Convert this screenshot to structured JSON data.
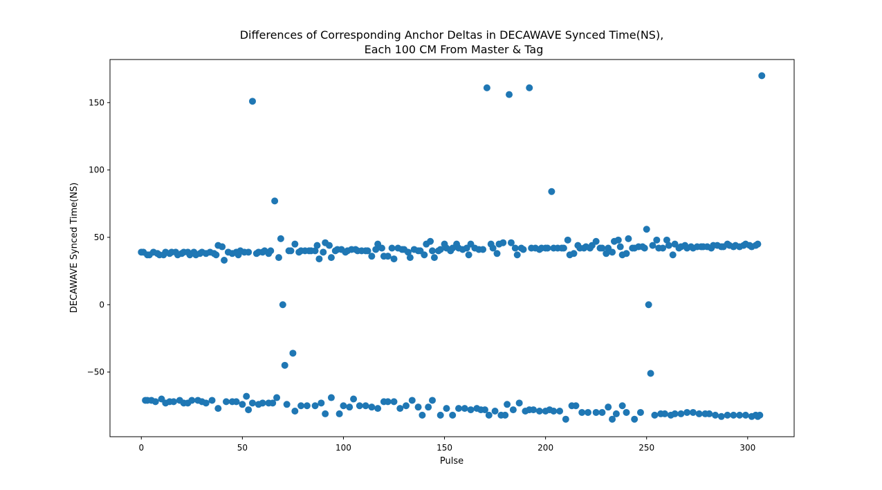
{
  "chart_data": {
    "type": "scatter",
    "title_line1": "Differences of Corresponding Anchor Deltas in DECAWAVE Synced Time(NS),",
    "title_line2": "Each 100 CM From Master & Tag",
    "xlabel": "Pulse",
    "ylabel": "DECAWAVE Synced Time(NS)",
    "xlim": [
      -15.5,
      323
    ],
    "ylim": [
      -98,
      182
    ],
    "xticks": [
      0,
      50,
      100,
      150,
      200,
      250,
      300
    ],
    "yticks": [
      -50,
      0,
      50,
      100,
      150
    ],
    "xtick_labels": [
      "0",
      "50",
      "100",
      "150",
      "200",
      "250",
      "300"
    ],
    "ytick_labels": [
      "−50",
      "0",
      "50",
      "100",
      "150"
    ],
    "grid": false,
    "marker_color": "#1f77b4",
    "series": [
      {
        "points": [
          [
            0,
            39
          ],
          [
            1,
            39
          ],
          [
            3,
            37
          ],
          [
            4,
            37
          ],
          [
            6,
            39
          ],
          [
            8,
            38
          ],
          [
            9,
            37
          ],
          [
            11,
            37
          ],
          [
            12,
            39
          ],
          [
            14,
            38
          ],
          [
            15,
            39
          ],
          [
            17,
            39
          ],
          [
            18,
            37
          ],
          [
            20,
            38
          ],
          [
            21,
            39
          ],
          [
            23,
            39
          ],
          [
            24,
            37
          ],
          [
            26,
            39
          ],
          [
            27,
            37
          ],
          [
            29,
            38
          ],
          [
            30,
            39
          ],
          [
            32,
            38
          ],
          [
            34,
            39
          ],
          [
            36,
            38
          ],
          [
            37,
            37
          ],
          [
            38,
            44
          ],
          [
            40,
            43
          ],
          [
            41,
            33
          ],
          [
            43,
            39
          ],
          [
            45,
            38
          ],
          [
            47,
            39
          ],
          [
            48,
            37
          ],
          [
            49,
            40
          ],
          [
            51,
            39
          ],
          [
            53,
            39
          ],
          [
            55,
            151
          ],
          [
            57,
            38
          ],
          [
            58,
            39
          ],
          [
            60,
            39
          ],
          [
            61,
            40
          ],
          [
            63,
            38
          ],
          [
            64,
            40
          ],
          [
            66,
            77
          ],
          [
            68,
            35
          ],
          [
            69,
            49
          ],
          [
            70,
            0
          ],
          [
            71,
            -45
          ],
          [
            75,
            -36
          ],
          [
            73,
            40
          ],
          [
            74,
            40
          ],
          [
            76,
            45
          ],
          [
            78,
            39
          ],
          [
            79,
            40
          ],
          [
            81,
            40
          ],
          [
            83,
            40
          ],
          [
            84,
            40
          ],
          [
            86,
            40
          ],
          [
            87,
            44
          ],
          [
            88,
            34
          ],
          [
            90,
            39
          ],
          [
            91,
            46
          ],
          [
            93,
            44
          ],
          [
            94,
            35
          ],
          [
            96,
            40
          ],
          [
            97,
            41
          ],
          [
            99,
            41
          ],
          [
            101,
            39
          ],
          [
            102,
            40
          ],
          [
            104,
            41
          ],
          [
            106,
            41
          ],
          [
            107,
            40
          ],
          [
            109,
            40
          ],
          [
            111,
            40
          ],
          [
            112,
            40
          ],
          [
            114,
            36
          ],
          [
            116,
            41
          ],
          [
            117,
            45
          ],
          [
            119,
            42
          ],
          [
            120,
            36
          ],
          [
            122,
            36
          ],
          [
            124,
            42
          ],
          [
            125,
            34
          ],
          [
            127,
            42
          ],
          [
            129,
            41
          ],
          [
            130,
            41
          ],
          [
            132,
            39
          ],
          [
            133,
            35
          ],
          [
            135,
            41
          ],
          [
            137,
            40
          ],
          [
            138,
            40
          ],
          [
            140,
            37
          ],
          [
            141,
            45
          ],
          [
            143,
            47
          ],
          [
            144,
            40
          ],
          [
            145,
            35
          ],
          [
            147,
            40
          ],
          [
            148,
            41
          ],
          [
            150,
            45
          ],
          [
            151,
            42
          ],
          [
            153,
            40
          ],
          [
            154,
            42
          ],
          [
            156,
            45
          ],
          [
            157,
            42
          ],
          [
            159,
            41
          ],
          [
            161,
            42
          ],
          [
            162,
            37
          ],
          [
            163,
            45
          ],
          [
            165,
            42
          ],
          [
            167,
            41
          ],
          [
            169,
            41
          ],
          [
            171,
            161
          ],
          [
            173,
            45
          ],
          [
            174,
            42
          ],
          [
            176,
            38
          ],
          [
            177,
            45
          ],
          [
            179,
            46
          ],
          [
            182,
            156
          ],
          [
            183,
            46
          ],
          [
            185,
            42
          ],
          [
            186,
            37
          ],
          [
            188,
            42
          ],
          [
            189,
            41
          ],
          [
            192,
            161
          ],
          [
            193,
            42
          ],
          [
            195,
            42
          ],
          [
            197,
            41
          ],
          [
            198,
            42
          ],
          [
            200,
            42
          ],
          [
            201,
            42
          ],
          [
            203,
            84
          ],
          [
            204,
            42
          ],
          [
            206,
            42
          ],
          [
            208,
            42
          ],
          [
            209,
            42
          ],
          [
            211,
            48
          ],
          [
            212,
            37
          ],
          [
            214,
            38
          ],
          [
            216,
            44
          ],
          [
            217,
            42
          ],
          [
            219,
            42
          ],
          [
            220,
            43
          ],
          [
            222,
            42
          ],
          [
            223,
            44
          ],
          [
            225,
            47
          ],
          [
            227,
            42
          ],
          [
            228,
            42
          ],
          [
            230,
            38
          ],
          [
            231,
            42
          ],
          [
            233,
            39
          ],
          [
            234,
            47
          ],
          [
            236,
            48
          ],
          [
            237,
            43
          ],
          [
            238,
            37
          ],
          [
            240,
            38
          ],
          [
            241,
            49
          ],
          [
            243,
            42
          ],
          [
            244,
            42
          ],
          [
            246,
            43
          ],
          [
            248,
            43
          ],
          [
            249,
            42
          ],
          [
            250,
            56
          ],
          [
            251,
            0
          ],
          [
            252,
            -51
          ],
          [
            253,
            44
          ],
          [
            255,
            48
          ],
          [
            256,
            42
          ],
          [
            258,
            42
          ],
          [
            260,
            48
          ],
          [
            261,
            44
          ],
          [
            263,
            37
          ],
          [
            264,
            45
          ],
          [
            266,
            42
          ],
          [
            267,
            43
          ],
          [
            269,
            44
          ],
          [
            270,
            42
          ],
          [
            272,
            43
          ],
          [
            273,
            42
          ],
          [
            275,
            43
          ],
          [
            277,
            43
          ],
          [
            278,
            43
          ],
          [
            280,
            43
          ],
          [
            282,
            42
          ],
          [
            283,
            44
          ],
          [
            285,
            44
          ],
          [
            287,
            43
          ],
          [
            288,
            43
          ],
          [
            290,
            45
          ],
          [
            291,
            44
          ],
          [
            293,
            43
          ],
          [
            294,
            44
          ],
          [
            296,
            43
          ],
          [
            298,
            44
          ],
          [
            299,
            45
          ],
          [
            301,
            44
          ],
          [
            302,
            43
          ],
          [
            304,
            44
          ],
          [
            305,
            45
          ],
          [
            307,
            170
          ],
          [
            2,
            -71
          ],
          [
            3,
            -71
          ],
          [
            5,
            -71
          ],
          [
            7,
            -72
          ],
          [
            10,
            -70
          ],
          [
            12,
            -73
          ],
          [
            14,
            -72
          ],
          [
            16,
            -72
          ],
          [
            19,
            -71
          ],
          [
            21,
            -73
          ],
          [
            23,
            -73
          ],
          [
            25,
            -71
          ],
          [
            28,
            -71
          ],
          [
            30,
            -72
          ],
          [
            32,
            -73
          ],
          [
            35,
            -71
          ],
          [
            38,
            -77
          ],
          [
            42,
            -72
          ],
          [
            45,
            -72
          ],
          [
            47,
            -72
          ],
          [
            50,
            -74
          ],
          [
            52,
            -68
          ],
          [
            53,
            -78
          ],
          [
            55,
            -73
          ],
          [
            58,
            -74
          ],
          [
            60,
            -73
          ],
          [
            63,
            -73
          ],
          [
            65,
            -73
          ],
          [
            67,
            -69
          ],
          [
            72,
            -74
          ],
          [
            76,
            -79
          ],
          [
            79,
            -75
          ],
          [
            82,
            -75
          ],
          [
            86,
            -75
          ],
          [
            89,
            -73
          ],
          [
            91,
            -81
          ],
          [
            94,
            -69
          ],
          [
            98,
            -81
          ],
          [
            100,
            -75
          ],
          [
            103,
            -76
          ],
          [
            105,
            -70
          ],
          [
            108,
            -75
          ],
          [
            111,
            -75
          ],
          [
            114,
            -76
          ],
          [
            117,
            -77
          ],
          [
            120,
            -72
          ],
          [
            122,
            -72
          ],
          [
            125,
            -72
          ],
          [
            128,
            -77
          ],
          [
            131,
            -75
          ],
          [
            134,
            -71
          ],
          [
            137,
            -76
          ],
          [
            139,
            -82
          ],
          [
            142,
            -76
          ],
          [
            144,
            -71
          ],
          [
            148,
            -82
          ],
          [
            151,
            -77
          ],
          [
            154,
            -82
          ],
          [
            157,
            -77
          ],
          [
            160,
            -77
          ],
          [
            163,
            -78
          ],
          [
            166,
            -77
          ],
          [
            168,
            -78
          ],
          [
            170,
            -78
          ],
          [
            172,
            -82
          ],
          [
            175,
            -79
          ],
          [
            178,
            -82
          ],
          [
            180,
            -82
          ],
          [
            181,
            -74
          ],
          [
            184,
            -78
          ],
          [
            187,
            -73
          ],
          [
            190,
            -79
          ],
          [
            192,
            -78
          ],
          [
            194,
            -78
          ],
          [
            197,
            -79
          ],
          [
            200,
            -79
          ],
          [
            202,
            -78
          ],
          [
            204,
            -79
          ],
          [
            207,
            -79
          ],
          [
            210,
            -85
          ],
          [
            213,
            -75
          ],
          [
            215,
            -75
          ],
          [
            218,
            -80
          ],
          [
            221,
            -80
          ],
          [
            225,
            -80
          ],
          [
            228,
            -80
          ],
          [
            231,
            -76
          ],
          [
            233,
            -85
          ],
          [
            235,
            -81
          ],
          [
            238,
            -75
          ],
          [
            240,
            -80
          ],
          [
            244,
            -85
          ],
          [
            247,
            -80
          ],
          [
            254,
            -82
          ],
          [
            257,
            -81
          ],
          [
            259,
            -81
          ],
          [
            262,
            -82
          ],
          [
            264,
            -81
          ],
          [
            267,
            -81
          ],
          [
            270,
            -80
          ],
          [
            273,
            -80
          ],
          [
            276,
            -81
          ],
          [
            279,
            -81
          ],
          [
            281,
            -81
          ],
          [
            284,
            -82
          ],
          [
            287,
            -83
          ],
          [
            290,
            -82
          ],
          [
            293,
            -82
          ],
          [
            296,
            -82
          ],
          [
            299,
            -82
          ],
          [
            302,
            -83
          ],
          [
            304,
            -82
          ],
          [
            305,
            -83
          ],
          [
            306,
            -82
          ]
        ]
      }
    ]
  }
}
